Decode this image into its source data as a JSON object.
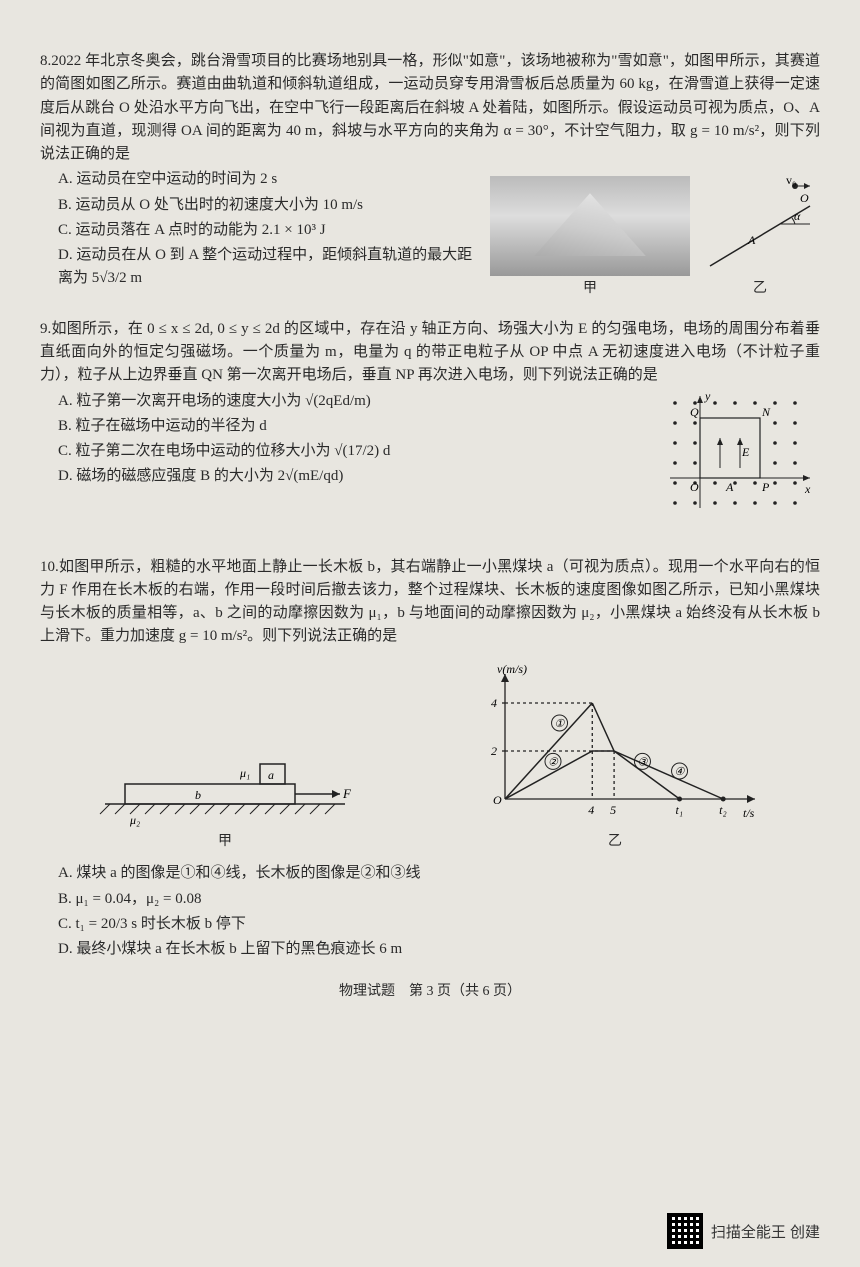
{
  "q8": {
    "num": "8.",
    "text": "2022 年北京冬奥会，跳台滑雪项目的比赛场地别具一格，形似\"如意\"，该场地被称为\"雪如意\"，如图甲所示，其赛道的简图如图乙所示。赛道由曲轨道和倾斜轨道组成，一运动员穿专用滑雪板后总质量为 60 kg，在滑雪道上获得一定速度后从跳台 O 处沿水平方向飞出，在空中飞行一段距离后在斜坡 A 处着陆，如图所示。假设运动员可视为质点，O、A 间视为直道，现测得 OA 间的距离为 40 m，斜坡与水平方向的夹角为 α = 30°，不计空气阻力，取 g = 10 m/s²，则下列说法正确的是",
    "A": "A. 运动员在空中运动的时间为 2 s",
    "B": "B. 运动员从 O 处飞出时的初速度大小为 10 m/s",
    "C": "C. 运动员落在 A 点时的动能为 2.1 × 10³ J",
    "D": "D. 运动员在从 O 到 A 整个运动过程中，距倾斜直轨道的最大距离为 5√3/2 m",
    "cap1": "甲",
    "cap2": "乙",
    "diag": {
      "O": "O",
      "A": "A",
      "alpha": "α",
      "v0": "v₀"
    }
  },
  "q9": {
    "num": "9.",
    "text": "如图所示，在 0 ≤ x ≤ 2d, 0 ≤ y ≤ 2d 的区域中，存在沿 y 轴正方向、场强大小为 E 的匀强电场，电场的周围分布着垂直纸面向外的恒定匀强磁场。一个质量为 m，电量为 q 的带正电粒子从 OP 中点 A 无初速度进入电场（不计粒子重力），粒子从上边界垂直 QN 第一次离开电场后，垂直 NP 再次进入电场，则下列说法正确的是",
    "A": "A. 粒子第一次离开电场的速度大小为 √(2qEd/m)",
    "B": "B. 粒子在磁场中运动的半径为 d",
    "C": "C. 粒子第二次在电场中运动的位移大小为 √(17/2) d",
    "D": "D. 磁场的磁感应强度 B 的大小为 2√(mE/qd)",
    "diag": {
      "O": "O",
      "A": "A",
      "P": "P",
      "Q": "Q",
      "N": "N",
      "E": "E",
      "x": "x",
      "y": "y"
    }
  },
  "q10": {
    "num": "10.",
    "text": "如图甲所示，粗糙的水平地面上静止一长木板 b，其右端静止一小黑煤块 a（可视为质点）。现用一个水平向右的恒力 F 作用在长木板的右端，作用一段时间后撤去该力，整个过程煤块、长木板的速度图像如图乙所示，已知小黑煤块与长木板的质量相等，a、b 之间的动摩擦因数为 μ₁，b 与地面间的动摩擦因数为 μ₂，小黑煤块 a 始终没有从长木板 b 上滑下。重力加速度 g = 10 m/s²。则下列说法正确的是",
    "A": "A. 煤块 a 的图像是①和④线，长木板的图像是②和③线",
    "B": "B. μ₁ = 0.04，μ₂ = 0.08",
    "C": "C. t₁ = 20/3 s 时长木板 b 停下",
    "D": "D. 最终小煤块 a 在长木板 b 上留下的黑色痕迹长 6 m",
    "cap1": "甲",
    "cap2": "乙",
    "diag1": {
      "mu1": "μ₁",
      "mu2": "μ₂",
      "a": "a",
      "b": "b",
      "F": "F"
    },
    "diag2": {
      "ylabel": "v(m/s)",
      "xlabel": "t/s",
      "yticks": [
        "2",
        "4"
      ],
      "xticks": [
        "4",
        "5",
        "t₁",
        "t₂"
      ],
      "labels": [
        "①",
        "②",
        "③",
        "④"
      ],
      "line1": [
        [
          0,
          0
        ],
        [
          4,
          4
        ]
      ],
      "line2": [
        [
          0,
          0
        ],
        [
          4,
          2
        ],
        [
          5,
          2
        ]
      ],
      "line3": [
        [
          4,
          4
        ],
        [
          5,
          2
        ],
        [
          8,
          0
        ]
      ],
      "line4": [
        [
          5,
          2
        ],
        [
          10,
          0
        ]
      ],
      "axis_range": {
        "x": [
          0,
          11
        ],
        "y": [
          0,
          5
        ]
      },
      "color": "#222",
      "grid": false
    }
  },
  "footer": "物理试题　第 3 页（共 6 页）",
  "qr_text": "扫描全能王  创建"
}
